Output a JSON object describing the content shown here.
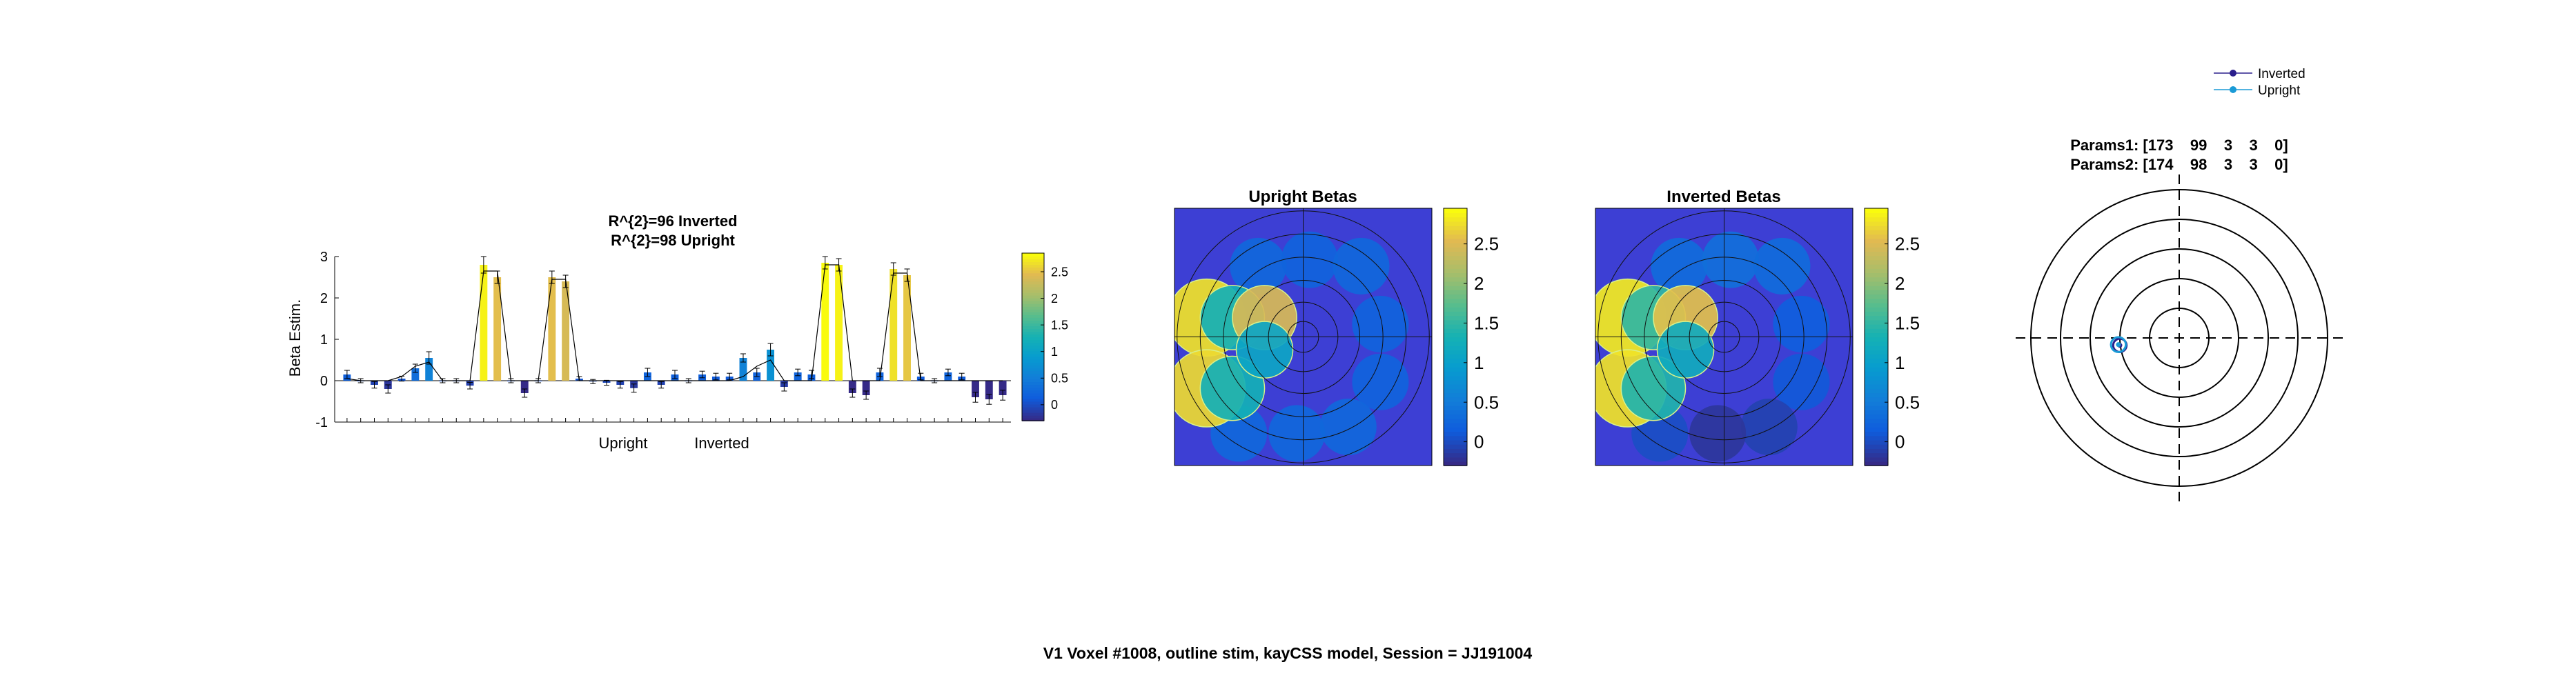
{
  "figure": {
    "suptitle": "V1 Voxel #1008, outline stim, kayCSS model, Session = JJ191004"
  },
  "colormap": "parula",
  "chart_data": [
    {
      "type": "bar",
      "title_lines": [
        "R^{2}=96 Inverted",
        "R^{2}=98 Upright"
      ],
      "ylabel": "Beta Estim.",
      "ylim": [
        -1,
        3
      ],
      "yticks": [
        -1,
        0,
        1,
        2,
        3
      ],
      "group_labels": [
        "Upright",
        "Inverted"
      ],
      "bar_colors_by_value": true,
      "values": [
        0.15,
        0.0,
        -0.1,
        -0.2,
        0.05,
        0.3,
        0.55,
        0.0,
        0.0,
        -0.12,
        2.8,
        2.5,
        0.0,
        -0.3,
        0.0,
        2.5,
        2.4,
        0.05,
        -0.02,
        -0.05,
        -0.1,
        -0.18,
        0.2,
        -0.1,
        0.15,
        0.0,
        0.15,
        0.1,
        0.1,
        0.55,
        0.2,
        0.75,
        -0.15,
        0.2,
        0.15,
        2.85,
        2.8,
        -0.3,
        -0.35,
        0.2,
        2.7,
        2.55,
        0.1,
        0.0,
        0.2,
        0.1,
        -0.4,
        -0.45,
        -0.35
      ],
      "errors": [
        0.1,
        0.05,
        0.08,
        0.1,
        0.06,
        0.1,
        0.15,
        0.05,
        0.05,
        0.08,
        0.2,
        0.15,
        0.05,
        0.1,
        0.05,
        0.15,
        0.15,
        0.05,
        0.05,
        0.06,
        0.08,
        0.1,
        0.1,
        0.08,
        0.1,
        0.05,
        0.08,
        0.08,
        0.08,
        0.1,
        0.1,
        0.15,
        0.1,
        0.08,
        0.1,
        0.15,
        0.15,
        0.1,
        0.1,
        0.1,
        0.15,
        0.15,
        0.08,
        0.05,
        0.08,
        0.08,
        0.12,
        0.12,
        0.12
      ],
      "model_fit": [
        0.05,
        0.0,
        0.0,
        0.0,
        0.1,
        0.35,
        0.45,
        0.0,
        0.0,
        0.0,
        2.65,
        2.65,
        0.0,
        0.0,
        0.0,
        2.45,
        2.45,
        0.0,
        0.0,
        0.0,
        0.0,
        0.0,
        0.0,
        0.0,
        0.0,
        0.0,
        0.0,
        0.0,
        0.0,
        0.1,
        0.35,
        0.5,
        0.0,
        0.0,
        0.0,
        2.8,
        2.8,
        0.0,
        0.0,
        0.0,
        2.6,
        2.6,
        0.0,
        0.0,
        0.0,
        0.0,
        0.0,
        0.0,
        0.0
      ],
      "colorbar": {
        "clim": [
          -0.3,
          2.85
        ],
        "ticks": [
          0,
          0.5,
          1,
          1.5,
          2,
          2.5
        ],
        "tick_labels": [
          "0",
          "0.5",
          "1",
          "1.5",
          "2",
          "2.5"
        ]
      }
    },
    {
      "type": "heatmap",
      "title": "Upright Betas",
      "description_of_cells": "overlapping circular apertures colored by beta; high in left/upper-left/lower-left, low elsewhere",
      "patches": [
        {
          "cx": -0.35,
          "cy": -0.55,
          "r": 0.22,
          "value": 0.25
        },
        {
          "cx": 0.05,
          "cy": -0.6,
          "r": 0.22,
          "value": 0.2
        },
        {
          "cx": 0.45,
          "cy": -0.55,
          "r": 0.22,
          "value": 0.25
        },
        {
          "cx": 0.6,
          "cy": -0.1,
          "r": 0.22,
          "value": 0.2
        },
        {
          "cx": 0.6,
          "cy": 0.35,
          "r": 0.22,
          "value": 0.2
        },
        {
          "cx": 0.35,
          "cy": 0.7,
          "r": 0.22,
          "value": 0.25
        },
        {
          "cx": -0.05,
          "cy": 0.75,
          "r": 0.22,
          "value": 0.25
        },
        {
          "cx": -0.5,
          "cy": 0.75,
          "r": 0.22,
          "value": 0.25
        },
        {
          "cx": -0.75,
          "cy": -0.15,
          "r": 0.3,
          "value": 2.8
        },
        {
          "cx": -0.75,
          "cy": 0.4,
          "r": 0.3,
          "value": 2.75
        },
        {
          "cx": -0.55,
          "cy": -0.15,
          "r": 0.25,
          "value": 1.3
        },
        {
          "cx": -0.3,
          "cy": -0.15,
          "r": 0.25,
          "value": 2.5
        },
        {
          "cx": -0.55,
          "cy": 0.4,
          "r": 0.25,
          "value": 1.3
        },
        {
          "cx": -0.3,
          "cy": 0.1,
          "r": 0.22,
          "value": 1.1
        }
      ],
      "colorbar": {
        "clim": [
          -0.3,
          2.95
        ],
        "ticks": [
          0,
          0.5,
          1,
          1.5,
          2,
          2.5
        ],
        "tick_labels": [
          "0",
          "0.5",
          "1",
          "1.5",
          "2",
          "2.5"
        ]
      }
    },
    {
      "type": "heatmap",
      "title": "Inverted Betas",
      "description_of_cells": "overlapping circular apertures colored by beta; high in left/upper-left/lower-left, lower elsewhere",
      "patches": [
        {
          "cx": -0.35,
          "cy": -0.55,
          "r": 0.22,
          "value": 0.3
        },
        {
          "cx": 0.05,
          "cy": -0.6,
          "r": 0.22,
          "value": 0.35
        },
        {
          "cx": 0.45,
          "cy": -0.55,
          "r": 0.22,
          "value": 0.3
        },
        {
          "cx": 0.6,
          "cy": -0.1,
          "r": 0.22,
          "value": 0.15
        },
        {
          "cx": 0.6,
          "cy": 0.35,
          "r": 0.22,
          "value": 0.1
        },
        {
          "cx": 0.35,
          "cy": 0.7,
          "r": 0.22,
          "value": -0.1
        },
        {
          "cx": -0.05,
          "cy": 0.75,
          "r": 0.22,
          "value": -0.2
        },
        {
          "cx": -0.5,
          "cy": 0.75,
          "r": 0.22,
          "value": 0.0
        },
        {
          "cx": -0.75,
          "cy": -0.15,
          "r": 0.3,
          "value": 2.85
        },
        {
          "cx": -0.75,
          "cy": 0.4,
          "r": 0.3,
          "value": 2.8
        },
        {
          "cx": -0.55,
          "cy": -0.15,
          "r": 0.25,
          "value": 1.5
        },
        {
          "cx": -0.3,
          "cy": -0.15,
          "r": 0.25,
          "value": 2.6
        },
        {
          "cx": -0.55,
          "cy": 0.4,
          "r": 0.25,
          "value": 1.4
        },
        {
          "cx": -0.3,
          "cy": 0.1,
          "r": 0.22,
          "value": 1.2
        }
      ],
      "colorbar": {
        "clim": [
          -0.3,
          2.95
        ],
        "ticks": [
          0,
          0.5,
          1,
          1.5,
          2,
          2.5
        ],
        "tick_labels": [
          "0",
          "0.5",
          "1",
          "1.5",
          "2",
          "2.5"
        ]
      }
    },
    {
      "type": "scatter",
      "title_lines": [
        "Params1: [173    99    3    3    0]",
        "Params2: [174    98    3    3    0]"
      ],
      "series": [
        {
          "name": "Inverted",
          "color": "#2a1e8c",
          "x": -0.4,
          "y": -0.05,
          "r": 0.045
        },
        {
          "name": "Upright",
          "color": "#1a9ad6",
          "x": -0.41,
          "y": -0.045,
          "r": 0.05
        }
      ],
      "polar_rings": [
        0.2,
        0.4,
        0.6,
        0.8,
        1.0
      ],
      "legend_loc": "northeast outside"
    }
  ]
}
